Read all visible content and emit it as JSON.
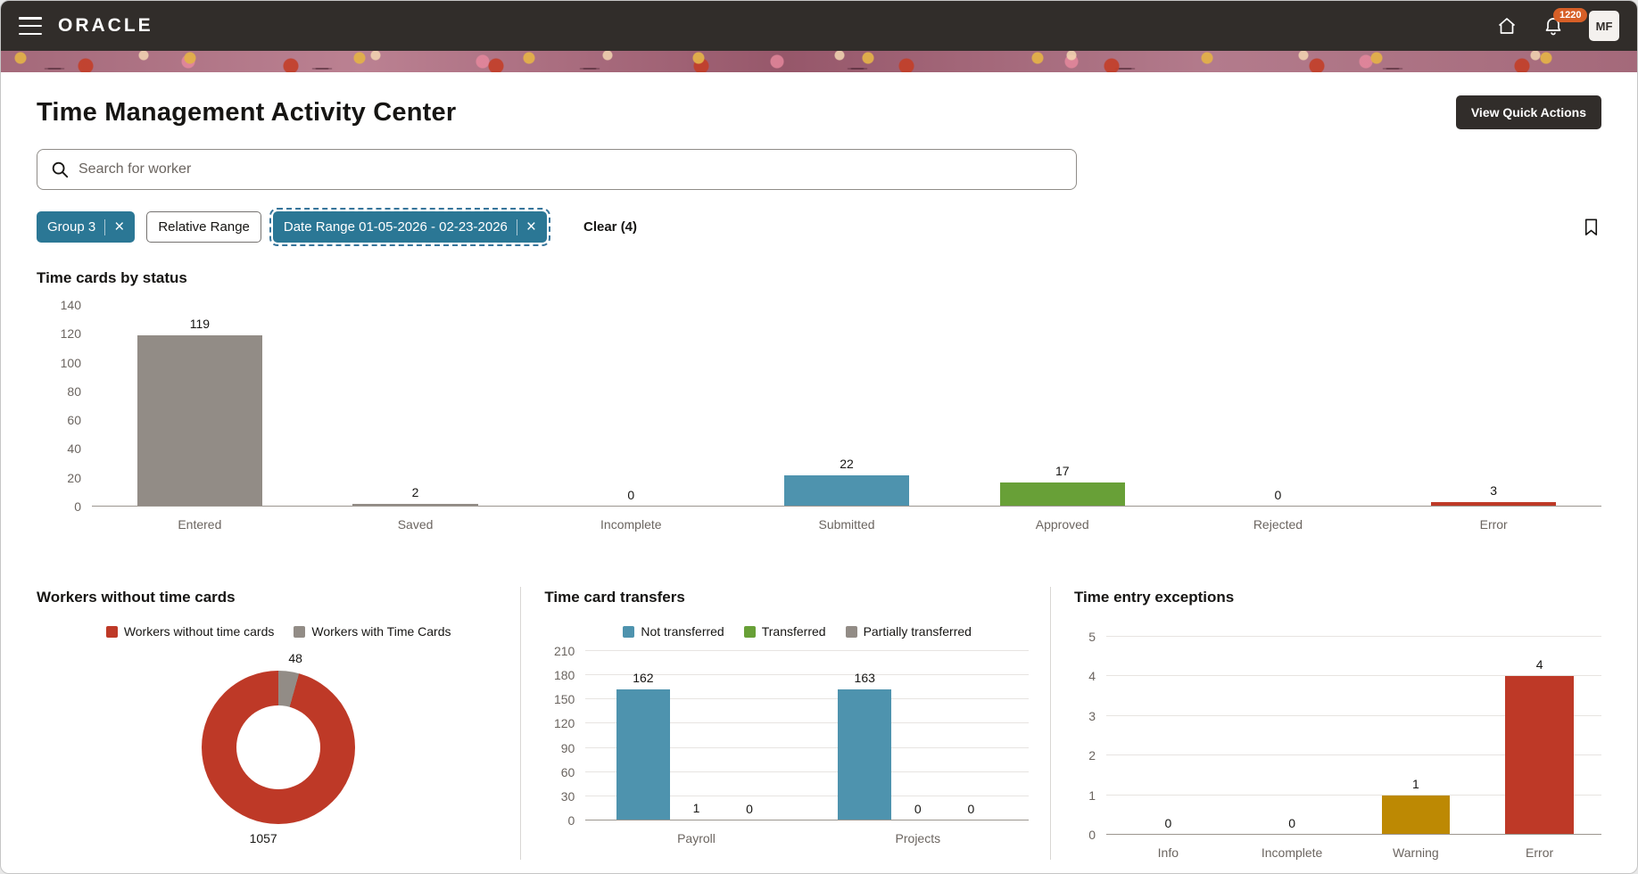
{
  "header": {
    "brand": "ORACLE",
    "notification_count": "1220",
    "avatar_initials": "MF"
  },
  "icons": {
    "close": "×"
  },
  "colors": {
    "header_bg": "#312d2a",
    "chip_teal": "#2b7795",
    "badge_orange": "#d75f27",
    "bar_teal": "#4E93AE",
    "bar_green": "#68A037",
    "bar_red": "#BE3927",
    "bar_gray": "#928C86",
    "bar_amber": "#BD8903"
  },
  "page": {
    "title": "Time Management Activity Center",
    "quick_actions_label": "View Quick Actions"
  },
  "search": {
    "placeholder": "Search for worker"
  },
  "filters": {
    "chips": [
      {
        "label": "Group 3"
      },
      {
        "label": "Relative Range"
      },
      {
        "label": "Date Range 01-05-2026 - 02-23-2026"
      }
    ],
    "clear_label": "Clear (4)"
  },
  "chart_data": [
    {
      "type": "bar",
      "title": "Time cards by status",
      "categories": [
        "Entered",
        "Saved",
        "Incomplete",
        "Submitted",
        "Approved",
        "Rejected",
        "Error"
      ],
      "values": [
        119,
        2,
        0,
        22,
        17,
        0,
        3
      ],
      "colors": [
        "#928C86",
        "#928C86",
        "#928C86",
        "#4E93AE",
        "#68A037",
        "#928C86",
        "#BE3927"
      ],
      "ylim": [
        0,
        140
      ],
      "yticks": [
        0,
        20,
        40,
        60,
        80,
        100,
        120,
        140
      ],
      "grid": false,
      "legend_position": "none"
    },
    {
      "type": "pie",
      "title": "Workers without time cards",
      "slices": [
        {
          "label": "Workers without time cards",
          "value": 1057,
          "color": "#BE3927"
        },
        {
          "label": "Workers with Time Cards",
          "value": 48,
          "color": "#928C86"
        }
      ],
      "draw_order": [
        1,
        0
      ],
      "legend_position": "top"
    },
    {
      "type": "bar",
      "title": "Time card transfers",
      "categories": [
        "Payroll",
        "Projects"
      ],
      "series": [
        {
          "name": "Not transferred",
          "values": [
            162,
            163
          ],
          "color": "#4E93AE"
        },
        {
          "name": "Transferred",
          "values": [
            1,
            0
          ],
          "color": "#68A037"
        },
        {
          "name": "Partially transferred",
          "values": [
            0,
            0
          ],
          "color": "#928C86"
        }
      ],
      "ylim": [
        0,
        210
      ],
      "yticks": [
        0,
        30,
        60,
        90,
        120,
        150,
        180,
        210
      ],
      "grid": true,
      "legend_position": "top"
    },
    {
      "type": "bar",
      "title": "Time entry exceptions",
      "categories": [
        "Info",
        "Incomplete",
        "Warning",
        "Error"
      ],
      "values": [
        0,
        0,
        1,
        4
      ],
      "colors": [
        "#928C86",
        "#928C86",
        "#BD8903",
        "#BE3927"
      ],
      "ylim": [
        0,
        5
      ],
      "yticks": [
        0,
        1,
        2,
        3,
        4,
        5
      ],
      "grid": true,
      "legend_position": "none"
    }
  ]
}
